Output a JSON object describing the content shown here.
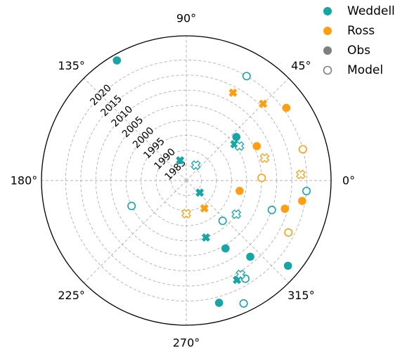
{
  "chart_data": {
    "type": "scatter",
    "projection": "polar",
    "angle_ticks": [
      {
        "value": 0,
        "label": "0°"
      },
      {
        "value": 45,
        "label": "45°"
      },
      {
        "value": 90,
        "label": "90°"
      },
      {
        "value": 135,
        "label": "135°"
      },
      {
        "value": 180,
        "label": "180°"
      },
      {
        "value": 225,
        "label": "225°"
      },
      {
        "value": 270,
        "label": "270°"
      },
      {
        "value": 315,
        "label": "315°"
      }
    ],
    "radial_range": [
      1980,
      2028
    ],
    "radial_ticks": [
      {
        "value": 1985,
        "label": "1985"
      },
      {
        "value": 1990,
        "label": "1990"
      },
      {
        "value": 1995,
        "label": "1995"
      },
      {
        "value": 2000,
        "label": "2000"
      },
      {
        "value": 2005,
        "label": "2005"
      },
      {
        "value": 2010,
        "label": "2010"
      },
      {
        "value": 2015,
        "label": "2015"
      },
      {
        "value": 2020,
        "label": "2020"
      }
    ],
    "radial_label_angle": 135,
    "grid": true,
    "legend_position": "top-right",
    "colors": {
      "weddell": "#17a5a5",
      "ross": "#ff9e10",
      "neutral": "#7f7f7f"
    },
    "legend": [
      {
        "label": "Weddell",
        "marker": "filled-circle",
        "color": "#17a5a5"
      },
      {
        "label": "Ross",
        "marker": "filled-circle",
        "color": "#ff9e10"
      },
      {
        "label": "Obs",
        "marker": "filled-circle",
        "color": "#7f7f7f"
      },
      {
        "label": "Model",
        "marker": "open-circle",
        "color": "#7f7f7f"
      }
    ],
    "series": [
      {
        "region": "Weddell",
        "type": "Obs",
        "marker": "filled-circle",
        "color": "#17a5a5",
        "points": [
          {
            "theta": 120,
            "year": 2026
          },
          {
            "theta": 41,
            "year": 2002
          },
          {
            "theta": 300,
            "year": 2006
          },
          {
            "theta": 310,
            "year": 2013
          },
          {
            "theta": 320,
            "year": 2024
          },
          {
            "theta": 285,
            "year": 2022
          }
        ]
      },
      {
        "region": "Weddell",
        "type": "Model",
        "marker": "open-circle",
        "color": "#17a5a5",
        "points": [
          {
            "theta": 60,
            "year": 2020
          },
          {
            "theta": 341,
            "year": 2010
          },
          {
            "theta": 355,
            "year": 2020
          },
          {
            "theta": 301,
            "year": 2018
          },
          {
            "theta": 205,
            "year": 2000
          },
          {
            "theta": 312,
            "year": 1998
          },
          {
            "theta": 295,
            "year": 2025
          }
        ]
      },
      {
        "region": "Ross",
        "type": "Obs",
        "marker": "filled-circle",
        "color": "#ff9e10",
        "points": [
          {
            "theta": 26,
            "year": 2006
          },
          {
            "theta": 36,
            "year": 2021
          },
          {
            "theta": 349,
            "year": 1998
          },
          {
            "theta": 344,
            "year": 2014
          },
          {
            "theta": 350,
            "year": 2019
          }
        ]
      },
      {
        "region": "Ross",
        "type": "Model",
        "marker": "open-circle",
        "color": "#ff9e10",
        "points": [
          {
            "theta": 2,
            "year": 2005
          },
          {
            "theta": 15,
            "year": 2020
          },
          {
            "theta": 333,
            "year": 2018
          }
        ]
      },
      {
        "region": "Weddell",
        "type": "Obs",
        "marker": "filled-x",
        "color": "#17a5a5",
        "points": [
          {
            "theta": 107,
            "year": 1987
          },
          {
            "theta": 318,
            "year": 1986
          },
          {
            "theta": 37,
            "year": 2000
          },
          {
            "theta": 289,
            "year": 2000
          },
          {
            "theta": 297,
            "year": 2017
          }
        ]
      },
      {
        "region": "Weddell",
        "type": "Model",
        "marker": "open-x",
        "color": "#17a5a5",
        "points": [
          {
            "theta": 58,
            "year": 1986
          },
          {
            "theta": 33,
            "year": 2001
          },
          {
            "theta": 326,
            "year": 2000
          },
          {
            "theta": 300,
            "year": 2016
          }
        ]
      },
      {
        "region": "Ross",
        "type": "Obs",
        "marker": "filled-x",
        "color": "#ff9e10",
        "points": [
          {
            "theta": 62,
            "year": 2013
          },
          {
            "theta": 45,
            "year": 2016
          },
          {
            "theta": 303,
            "year": 1991
          }
        ]
      },
      {
        "region": "Ross",
        "type": "Model",
        "marker": "open-x",
        "color": "#ff9e10",
        "points": [
          {
            "theta": 16,
            "year": 2007
          },
          {
            "theta": 3,
            "year": 2018
          },
          {
            "theta": 270,
            "year": 1991
          }
        ]
      }
    ]
  }
}
